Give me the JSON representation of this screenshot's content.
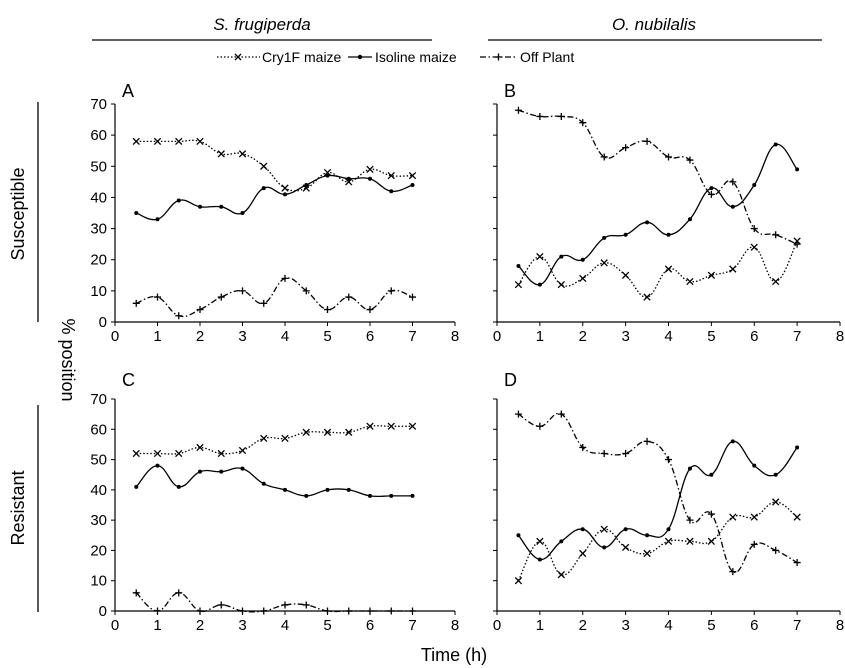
{
  "columns": [
    "S. frugiperda",
    "O. nubilalis"
  ],
  "rows": [
    "Susceptible",
    "Resistant"
  ],
  "ylabel": "% position",
  "xlabel": "Time (h)",
  "legend": {
    "placement": "top",
    "entries": [
      {
        "name": "Cry1F maize",
        "style": "dotted",
        "marker": "x"
      },
      {
        "name": "Isoline maize",
        "style": "solid",
        "marker": "dot"
      },
      {
        "name": "Off Plant",
        "style": "dashdot",
        "marker": "plus"
      }
    ]
  },
  "chart_data": [
    {
      "type": "line",
      "panel": "A",
      "x": [
        0.5,
        1,
        1.5,
        2,
        2.5,
        3,
        3.5,
        4,
        4.5,
        5,
        5.5,
        6,
        6.5,
        7
      ],
      "xlim": [
        0,
        8
      ],
      "ylim": [
        0,
        70
      ],
      "xticks": [
        "0",
        "1",
        "2",
        "3",
        "4",
        "5",
        "6",
        "7",
        "8"
      ],
      "yticks": [
        "0",
        "10",
        "20",
        "30",
        "40",
        "50",
        "60",
        "70"
      ],
      "series": [
        {
          "name": "Cry1F maize",
          "values": [
            58,
            58,
            58,
            58,
            54,
            54,
            50,
            43,
            43,
            48,
            45,
            49,
            47,
            47
          ]
        },
        {
          "name": "Isoline maize",
          "values": [
            35,
            33,
            39,
            37,
            37,
            35,
            43,
            41,
            44,
            47,
            46,
            46,
            42,
            44
          ]
        },
        {
          "name": "Off Plant",
          "values": [
            6,
            8,
            2,
            4,
            8,
            10,
            6,
            14,
            10,
            4,
            8,
            4,
            10,
            8
          ]
        }
      ]
    },
    {
      "type": "line",
      "panel": "B",
      "x": [
        0.5,
        1,
        1.5,
        2,
        2.5,
        3,
        3.5,
        4,
        4.5,
        5,
        5.5,
        6,
        6.5,
        7
      ],
      "xlim": [
        0,
        8
      ],
      "ylim": [
        0,
        70
      ],
      "xticks": [
        "0",
        "1",
        "2",
        "3",
        "4",
        "5",
        "6",
        "7",
        "8"
      ],
      "yticks": [],
      "series": [
        {
          "name": "Cry1F maize",
          "values": [
            12,
            21,
            12,
            14,
            19,
            15,
            8,
            17,
            13,
            15,
            17,
            24,
            13,
            26
          ]
        },
        {
          "name": "Isoline maize",
          "values": [
            18,
            12,
            21,
            20,
            27,
            28,
            32,
            28,
            33,
            43,
            37,
            44,
            57,
            49
          ]
        },
        {
          "name": "Off Plant",
          "values": [
            68,
            66,
            66,
            64,
            53,
            56,
            58,
            53,
            52,
            41,
            45,
            30,
            28,
            25
          ]
        }
      ]
    },
    {
      "type": "line",
      "panel": "C",
      "x": [
        0.5,
        1,
        1.5,
        2,
        2.5,
        3,
        3.5,
        4,
        4.5,
        5,
        5.5,
        6,
        6.5,
        7
      ],
      "xlim": [
        0,
        8
      ],
      "ylim": [
        0,
        70
      ],
      "xticks": [
        "0",
        "1",
        "2",
        "3",
        "4",
        "5",
        "6",
        "7",
        "8"
      ],
      "yticks": [
        "0",
        "10",
        "20",
        "30",
        "40",
        "50",
        "60",
        "70"
      ],
      "series": [
        {
          "name": "Cry1F maize",
          "values": [
            52,
            52,
            52,
            54,
            52,
            53,
            57,
            57,
            59,
            59,
            59,
            61,
            61,
            61
          ]
        },
        {
          "name": "Isoline maize",
          "values": [
            41,
            48,
            41,
            46,
            46,
            47,
            42,
            40,
            38,
            40,
            40,
            38,
            38,
            38
          ]
        },
        {
          "name": "Off Plant",
          "values": [
            6,
            0,
            6,
            0,
            2,
            0,
            0,
            2,
            2,
            0,
            0,
            0,
            0,
            0
          ]
        }
      ]
    },
    {
      "type": "line",
      "panel": "D",
      "x": [
        0.5,
        1,
        1.5,
        2,
        2.5,
        3,
        3.5,
        4,
        4.5,
        5,
        5.5,
        6,
        6.5,
        7
      ],
      "xlim": [
        0,
        8
      ],
      "ylim": [
        0,
        70
      ],
      "xticks": [
        "0",
        "1",
        "2",
        "3",
        "4",
        "5",
        "6",
        "7",
        "8"
      ],
      "yticks": [],
      "series": [
        {
          "name": "Cry1F maize",
          "values": [
            10,
            23,
            12,
            19,
            27,
            21,
            19,
            23,
            23,
            23,
            31,
            31,
            36,
            31
          ]
        },
        {
          "name": "Isoline maize",
          "values": [
            25,
            17,
            23,
            27,
            21,
            27,
            25,
            27,
            47,
            45,
            56,
            48,
            45,
            54
          ]
        },
        {
          "name": "Off Plant",
          "values": [
            65,
            61,
            65,
            54,
            52,
            52,
            56,
            50,
            30,
            32,
            13,
            22,
            20,
            16
          ]
        }
      ]
    }
  ]
}
